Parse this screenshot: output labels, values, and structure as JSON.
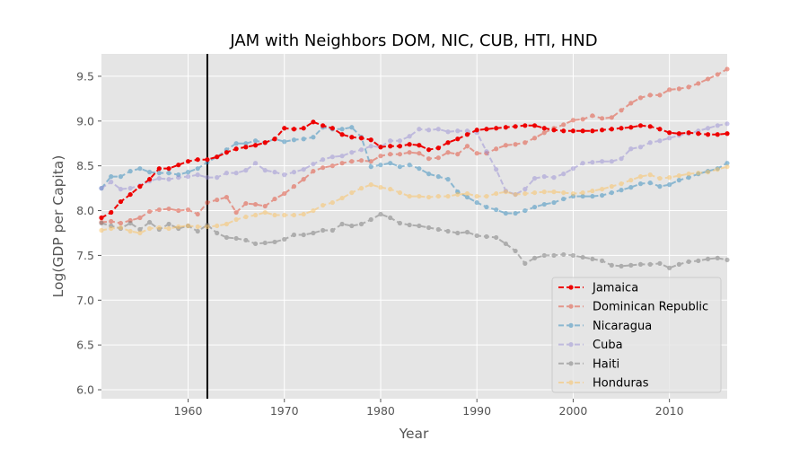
{
  "chart_data": {
    "type": "line",
    "title": "JAM with Neighbors DOM, NIC, CUB, HTI, HND",
    "xlabel": "Year",
    "ylabel": "Log(GDP per Capita)",
    "xlim": [
      1951,
      2016
    ],
    "ylim": [
      5.9,
      9.75
    ],
    "xticks": [
      1960,
      1970,
      1980,
      1990,
      2000,
      2010
    ],
    "yticks": [
      6.0,
      6.5,
      7.0,
      7.5,
      8.0,
      8.5,
      9.0,
      9.5
    ],
    "grid": true,
    "legend_position": "lower-right",
    "vertical_line": {
      "x": 1962,
      "color": "#000000"
    },
    "series": [
      {
        "name": "Jamaica",
        "color": "#ee0000",
        "opacity": 1.0,
        "x": [
          1951,
          1952,
          1953,
          1954,
          1955,
          1956,
          1957,
          1958,
          1959,
          1960,
          1961,
          1962,
          1963,
          1964,
          1965,
          1966,
          1967,
          1968,
          1969,
          1970,
          1971,
          1972,
          1973,
          1974,
          1975,
          1976,
          1977,
          1978,
          1979,
          1980,
          1981,
          1982,
          1983,
          1984,
          1985,
          1986,
          1987,
          1988,
          1989,
          1990,
          1991,
          1992,
          1993,
          1994,
          1995,
          1996,
          1997,
          1998,
          1999,
          2000,
          2001,
          2002,
          2003,
          2004,
          2005,
          2006,
          2007,
          2008,
          2009,
          2010,
          2011,
          2012,
          2013,
          2014,
          2015,
          2016
        ],
        "y": [
          7.92,
          7.98,
          8.1,
          8.18,
          8.27,
          8.35,
          8.47,
          8.47,
          8.51,
          8.55,
          8.57,
          8.57,
          8.6,
          8.65,
          8.69,
          8.71,
          8.73,
          8.76,
          8.8,
          8.92,
          8.91,
          8.92,
          8.99,
          8.95,
          8.92,
          8.85,
          8.82,
          8.81,
          8.79,
          8.71,
          8.72,
          8.72,
          8.74,
          8.73,
          8.68,
          8.7,
          8.76,
          8.8,
          8.85,
          8.9,
          8.91,
          8.92,
          8.93,
          8.94,
          8.95,
          8.95,
          8.92,
          8.9,
          8.89,
          8.89,
          8.89,
          8.89,
          8.9,
          8.91,
          8.92,
          8.93,
          8.95,
          8.94,
          8.91,
          8.87,
          8.86,
          8.87,
          8.86,
          8.85,
          8.85,
          8.86
        ]
      },
      {
        "name": "Dominican Republic",
        "color": "#e24a33",
        "opacity": 0.5,
        "x": [
          1951,
          1952,
          1953,
          1954,
          1955,
          1956,
          1957,
          1958,
          1959,
          1960,
          1961,
          1962,
          1963,
          1964,
          1965,
          1966,
          1967,
          1968,
          1969,
          1970,
          1971,
          1972,
          1973,
          1974,
          1975,
          1976,
          1977,
          1978,
          1979,
          1980,
          1981,
          1982,
          1983,
          1984,
          1985,
          1986,
          1987,
          1988,
          1989,
          1990,
          1991,
          1992,
          1993,
          1994,
          1995,
          1996,
          1997,
          1998,
          1999,
          2000,
          2001,
          2002,
          2003,
          2004,
          2005,
          2006,
          2007,
          2008,
          2009,
          2010,
          2011,
          2012,
          2013,
          2014,
          2015,
          2016
        ],
        "y": [
          7.87,
          7.88,
          7.86,
          7.89,
          7.92,
          7.99,
          8.01,
          8.02,
          8.0,
          8.01,
          7.96,
          8.09,
          8.12,
          8.15,
          7.98,
          8.08,
          8.07,
          8.05,
          8.13,
          8.19,
          8.27,
          8.35,
          8.44,
          8.48,
          8.5,
          8.53,
          8.55,
          8.56,
          8.55,
          8.61,
          8.63,
          8.63,
          8.65,
          8.64,
          8.58,
          8.59,
          8.65,
          8.63,
          8.72,
          8.64,
          8.64,
          8.69,
          8.73,
          8.74,
          8.76,
          8.81,
          8.87,
          8.92,
          8.96,
          9.01,
          9.02,
          9.06,
          9.03,
          9.04,
          9.12,
          9.2,
          9.26,
          9.29,
          9.29,
          9.35,
          9.36,
          9.38,
          9.42,
          9.47,
          9.52,
          9.58
        ]
      },
      {
        "name": "Nicaragua",
        "color": "#348abd",
        "opacity": 0.5,
        "x": [
          1951,
          1952,
          1953,
          1954,
          1955,
          1956,
          1957,
          1958,
          1959,
          1960,
          1961,
          1962,
          1963,
          1964,
          1965,
          1966,
          1967,
          1968,
          1969,
          1970,
          1971,
          1972,
          1973,
          1974,
          1975,
          1976,
          1977,
          1978,
          1979,
          1980,
          1981,
          1982,
          1983,
          1984,
          1985,
          1986,
          1987,
          1988,
          1989,
          1990,
          1991,
          1992,
          1993,
          1994,
          1995,
          1996,
          1997,
          1998,
          1999,
          2000,
          2001,
          2002,
          2003,
          2004,
          2005,
          2006,
          2007,
          2008,
          2009,
          2010,
          2011,
          2012,
          2013,
          2014,
          2015,
          2016
        ],
        "y": [
          8.25,
          8.38,
          8.38,
          8.44,
          8.47,
          8.43,
          8.42,
          8.42,
          8.4,
          8.43,
          8.47,
          8.54,
          8.6,
          8.68,
          8.75,
          8.75,
          8.78,
          8.76,
          8.8,
          8.77,
          8.79,
          8.8,
          8.82,
          8.93,
          8.91,
          8.91,
          8.93,
          8.82,
          8.49,
          8.51,
          8.53,
          8.49,
          8.51,
          8.47,
          8.41,
          8.38,
          8.35,
          8.21,
          8.15,
          8.09,
          8.04,
          8.01,
          7.97,
          7.97,
          8.0,
          8.04,
          8.07,
          8.09,
          8.13,
          8.16,
          8.16,
          8.16,
          8.17,
          8.2,
          8.23,
          8.26,
          8.3,
          8.31,
          8.27,
          8.29,
          8.34,
          8.37,
          8.41,
          8.44,
          8.47,
          8.53
        ]
      },
      {
        "name": "Cuba",
        "color": "#988ed5",
        "opacity": 0.5,
        "x": [
          1951,
          1952,
          1953,
          1954,
          1955,
          1956,
          1957,
          1958,
          1959,
          1960,
          1961,
          1962,
          1963,
          1964,
          1965,
          1966,
          1967,
          1968,
          1969,
          1970,
          1971,
          1972,
          1973,
          1974,
          1975,
          1976,
          1977,
          1978,
          1979,
          1980,
          1981,
          1982,
          1983,
          1984,
          1985,
          1986,
          1987,
          1988,
          1989,
          1990,
          1991,
          1992,
          1993,
          1994,
          1995,
          1996,
          1997,
          1998,
          1999,
          2000,
          2001,
          2002,
          2003,
          2004,
          2005,
          2006,
          2007,
          2008,
          2009,
          2010,
          2011,
          2012,
          2013,
          2014,
          2015,
          2016
        ],
        "y": [
          8.25,
          8.32,
          8.24,
          8.25,
          8.28,
          8.33,
          8.36,
          8.35,
          8.37,
          8.38,
          8.4,
          8.37,
          8.37,
          8.42,
          8.42,
          8.45,
          8.53,
          8.45,
          8.43,
          8.4,
          8.43,
          8.46,
          8.52,
          8.57,
          8.6,
          8.61,
          8.65,
          8.68,
          8.72,
          8.71,
          8.78,
          8.78,
          8.83,
          8.91,
          8.9,
          8.91,
          8.88,
          8.89,
          8.89,
          8.87,
          8.66,
          8.46,
          8.22,
          8.18,
          8.24,
          8.36,
          8.38,
          8.37,
          8.41,
          8.47,
          8.53,
          8.54,
          8.55,
          8.55,
          8.58,
          8.69,
          8.71,
          8.76,
          8.78,
          8.81,
          8.84,
          8.86,
          8.89,
          8.92,
          8.95,
          8.97
        ]
      },
      {
        "name": "Haiti",
        "color": "#777777",
        "opacity": 0.5,
        "x": [
          1951,
          1952,
          1953,
          1954,
          1955,
          1956,
          1957,
          1958,
          1959,
          1960,
          1961,
          1962,
          1963,
          1964,
          1965,
          1966,
          1967,
          1968,
          1969,
          1970,
          1971,
          1972,
          1973,
          1974,
          1975,
          1976,
          1977,
          1978,
          1979,
          1980,
          1981,
          1982,
          1983,
          1984,
          1985,
          1986,
          1987,
          1988,
          1989,
          1990,
          1991,
          1992,
          1993,
          1994,
          1995,
          1996,
          1997,
          1998,
          1999,
          2000,
          2001,
          2002,
          2003,
          2004,
          2005,
          2006,
          2007,
          2008,
          2009,
          2010,
          2011,
          2012,
          2013,
          2014,
          2015,
          2016
        ],
        "y": [
          7.86,
          7.83,
          7.8,
          7.86,
          7.79,
          7.87,
          7.79,
          7.85,
          7.8,
          7.83,
          7.77,
          7.84,
          7.75,
          7.7,
          7.69,
          7.67,
          7.63,
          7.64,
          7.65,
          7.68,
          7.73,
          7.73,
          7.75,
          7.78,
          7.78,
          7.85,
          7.83,
          7.85,
          7.9,
          7.96,
          7.92,
          7.86,
          7.84,
          7.83,
          7.81,
          7.79,
          7.77,
          7.75,
          7.76,
          7.72,
          7.71,
          7.7,
          7.63,
          7.55,
          7.41,
          7.47,
          7.5,
          7.5,
          7.51,
          7.5,
          7.48,
          7.46,
          7.44,
          7.39,
          7.38,
          7.39,
          7.4,
          7.4,
          7.41,
          7.36,
          7.4,
          7.43,
          7.44,
          7.46,
          7.47,
          7.45
        ]
      },
      {
        "name": "Honduras",
        "color": "#fbc15e",
        "opacity": 0.5,
        "x": [
          1951,
          1952,
          1953,
          1954,
          1955,
          1956,
          1957,
          1958,
          1959,
          1960,
          1961,
          1962,
          1963,
          1964,
          1965,
          1966,
          1967,
          1968,
          1969,
          1970,
          1971,
          1972,
          1973,
          1974,
          1975,
          1976,
          1977,
          1978,
          1979,
          1980,
          1981,
          1982,
          1983,
          1984,
          1985,
          1986,
          1987,
          1988,
          1989,
          1990,
          1991,
          1992,
          1993,
          1994,
          1995,
          1996,
          1997,
          1998,
          1999,
          2000,
          2001,
          2002,
          2003,
          2004,
          2005,
          2006,
          2007,
          2008,
          2009,
          2010,
          2011,
          2012,
          2013,
          2014,
          2015,
          2016
        ],
        "y": [
          7.78,
          7.8,
          7.81,
          7.77,
          7.75,
          7.8,
          7.81,
          7.8,
          7.82,
          7.83,
          7.82,
          7.82,
          7.83,
          7.85,
          7.9,
          7.93,
          7.95,
          7.98,
          7.95,
          7.95,
          7.95,
          7.96,
          8.0,
          8.06,
          8.09,
          8.14,
          8.2,
          8.25,
          8.29,
          8.26,
          8.24,
          8.2,
          8.16,
          8.16,
          8.15,
          8.16,
          8.16,
          8.18,
          8.19,
          8.16,
          8.16,
          8.19,
          8.21,
          8.18,
          8.19,
          8.2,
          8.21,
          8.21,
          8.2,
          8.19,
          8.2,
          8.22,
          8.24,
          8.27,
          8.3,
          8.34,
          8.38,
          8.4,
          8.36,
          8.37,
          8.39,
          8.41,
          8.42,
          8.43,
          8.46,
          8.49
        ]
      }
    ]
  }
}
